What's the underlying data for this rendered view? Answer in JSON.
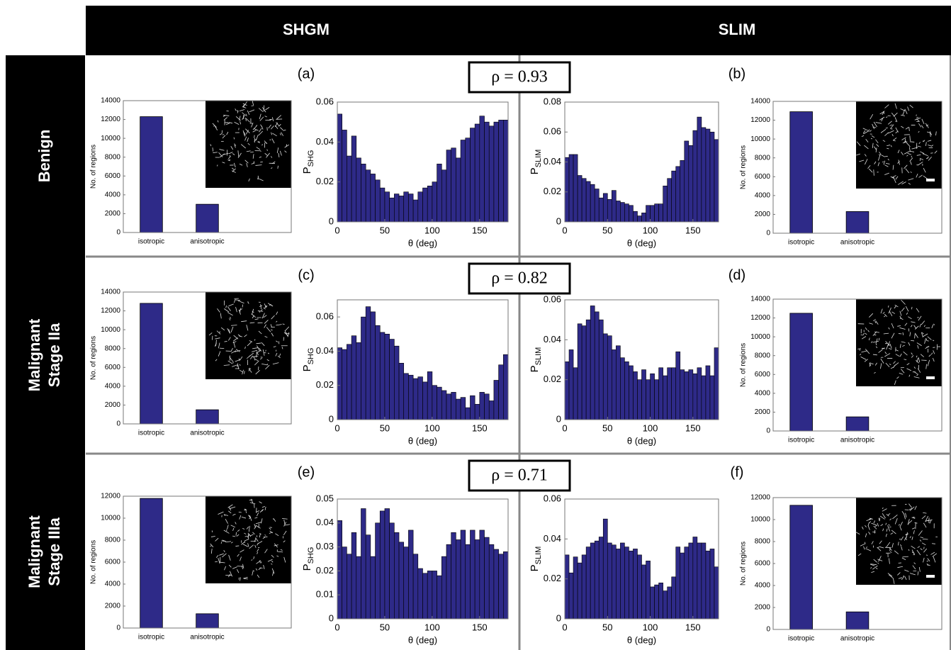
{
  "column_headers": [
    "SHGM",
    "SLIM"
  ],
  "rows": [
    {
      "label": [
        "Benign"
      ],
      "panels": [
        "(a)",
        "(b)"
      ],
      "correlation": "ρ = 0.93"
    },
    {
      "label": [
        "Malignant",
        "Stage IIa"
      ],
      "panels": [
        "(c)",
        "(d)"
      ],
      "correlation": "ρ = 0.82"
    },
    {
      "label": [
        "Malignant",
        "Stage IIIa"
      ],
      "panels": [
        "(e)",
        "(f)"
      ],
      "correlation": "ρ = 0.71"
    }
  ],
  "chart_data": [
    {
      "type": "bar",
      "ylabel": "No. of regions",
      "categories": [
        "isotropic",
        "anisotropic"
      ],
      "values": [
        12300,
        3000
      ],
      "color": "#2e2a88",
      "ylim": [
        0,
        14000
      ],
      "yticks": [
        0,
        2000,
        4000,
        6000,
        8000,
        10000,
        12000,
        14000
      ]
    },
    {
      "type": "histogram",
      "ylabel": "P",
      "ylabel_subscript": "SHG",
      "xlabel": "θ (deg)",
      "color": "#2e2a88",
      "bins": [
        0,
        5,
        10,
        15,
        20,
        25,
        30,
        35,
        40,
        45,
        50,
        55,
        60,
        65,
        70,
        75,
        80,
        85,
        90,
        95,
        100,
        105,
        110,
        115,
        120,
        125,
        130,
        135,
        140,
        145,
        150,
        155,
        160,
        165,
        170,
        175,
        180
      ],
      "values": [
        0.054,
        0.046,
        0.033,
        0.043,
        0.032,
        0.029,
        0.026,
        0.024,
        0.021,
        0.017,
        0.015,
        0.012,
        0.014,
        0.013,
        0.015,
        0.014,
        0.011,
        0.015,
        0.017,
        0.018,
        0.02,
        0.029,
        0.026,
        0.036,
        0.037,
        0.032,
        0.041,
        0.042,
        0.047,
        0.049,
        0.053,
        0.05,
        0.048,
        0.05,
        0.051,
        0.051
      ],
      "xlim": [
        0,
        180
      ],
      "xticks": [
        0,
        50,
        100,
        150
      ],
      "ylim": [
        0,
        0.06
      ],
      "yticks": [
        0,
        0.02,
        0.04,
        0.06
      ]
    },
    {
      "type": "histogram",
      "ylabel": "P",
      "ylabel_subscript": "SLIM",
      "xlabel": "θ (deg)",
      "color": "#2e2a88",
      "bins": [
        0,
        5,
        10,
        15,
        20,
        25,
        30,
        35,
        40,
        45,
        50,
        55,
        60,
        65,
        70,
        75,
        80,
        85,
        90,
        95,
        100,
        105,
        110,
        115,
        120,
        125,
        130,
        135,
        140,
        145,
        150,
        155,
        160,
        165,
        170,
        175,
        180
      ],
      "values": [
        0.043,
        0.045,
        0.045,
        0.031,
        0.029,
        0.027,
        0.025,
        0.022,
        0.016,
        0.019,
        0.015,
        0.021,
        0.014,
        0.013,
        0.012,
        0.011,
        0.007,
        0.004,
        0.006,
        0.011,
        0.011,
        0.012,
        0.012,
        0.024,
        0.029,
        0.034,
        0.037,
        0.041,
        0.054,
        0.051,
        0.061,
        0.07,
        0.063,
        0.062,
        0.06,
        0.055
      ],
      "xlim": [
        0,
        180
      ],
      "xticks": [
        0,
        50,
        100,
        150
      ],
      "ylim": [
        0,
        0.08
      ],
      "yticks": [
        0,
        0.02,
        0.04,
        0.06,
        0.08
      ]
    },
    {
      "type": "bar",
      "ylabel": "No. of regions",
      "categories": [
        "isotropic",
        "anisotropic"
      ],
      "values": [
        12900,
        2300
      ],
      "color": "#2e2a88",
      "ylim": [
        0,
        14000
      ],
      "yticks": [
        0,
        2000,
        4000,
        6000,
        8000,
        10000,
        12000,
        14000
      ]
    },
    {
      "type": "bar",
      "ylabel": "No. of regions",
      "categories": [
        "isotropic",
        "anisotropic"
      ],
      "values": [
        12800,
        1500
      ],
      "color": "#2e2a88",
      "ylim": [
        0,
        14000
      ],
      "yticks": [
        0,
        2000,
        4000,
        6000,
        8000,
        10000,
        12000,
        14000
      ]
    },
    {
      "type": "histogram",
      "ylabel": "P",
      "ylabel_subscript": "SHG",
      "xlabel": "θ (deg)",
      "color": "#2e2a88",
      "bins": [
        0,
        5,
        10,
        15,
        20,
        25,
        30,
        35,
        40,
        45,
        50,
        55,
        60,
        65,
        70,
        75,
        80,
        85,
        90,
        95,
        100,
        105,
        110,
        115,
        120,
        125,
        130,
        135,
        140,
        145,
        150,
        155,
        160,
        165,
        170,
        175,
        180
      ],
      "values": [
        0.042,
        0.041,
        0.044,
        0.049,
        0.045,
        0.06,
        0.066,
        0.063,
        0.055,
        0.051,
        0.05,
        0.047,
        0.043,
        0.033,
        0.027,
        0.026,
        0.024,
        0.025,
        0.022,
        0.028,
        0.02,
        0.019,
        0.017,
        0.015,
        0.016,
        0.012,
        0.013,
        0.007,
        0.014,
        0.009,
        0.016,
        0.015,
        0.011,
        0.023,
        0.032,
        0.038
      ],
      "xlim": [
        0,
        180
      ],
      "xticks": [
        0,
        50,
        100,
        150
      ],
      "ylim": [
        0,
        0.07
      ],
      "yticks": [
        0,
        0.02,
        0.04,
        0.06
      ]
    },
    {
      "type": "histogram",
      "ylabel": "P",
      "ylabel_subscript": "SLIM",
      "xlabel": "θ (deg)",
      "color": "#2e2a88",
      "bins": [
        0,
        5,
        10,
        15,
        20,
        25,
        30,
        35,
        40,
        45,
        50,
        55,
        60,
        65,
        70,
        75,
        80,
        85,
        90,
        95,
        100,
        105,
        110,
        115,
        120,
        125,
        130,
        135,
        140,
        145,
        150,
        155,
        160,
        165,
        170,
        175,
        180
      ],
      "values": [
        0.029,
        0.035,
        0.026,
        0.048,
        0.047,
        0.05,
        0.057,
        0.054,
        0.05,
        0.043,
        0.042,
        0.035,
        0.037,
        0.031,
        0.029,
        0.027,
        0.024,
        0.02,
        0.025,
        0.02,
        0.023,
        0.02,
        0.026,
        0.022,
        0.026,
        0.026,
        0.034,
        0.025,
        0.024,
        0.025,
        0.023,
        0.026,
        0.022,
        0.027,
        0.022,
        0.036
      ],
      "xlim": [
        0,
        180
      ],
      "xticks": [
        0,
        50,
        100,
        150
      ],
      "ylim": [
        0,
        0.06
      ],
      "yticks": [
        0,
        0.02,
        0.04,
        0.06
      ]
    },
    {
      "type": "bar",
      "ylabel": "No. of regions",
      "categories": [
        "isotropic",
        "anisotropic"
      ],
      "values": [
        12500,
        1500
      ],
      "color": "#2e2a88",
      "ylim": [
        0,
        14000
      ],
      "yticks": [
        0,
        2000,
        4000,
        6000,
        8000,
        10000,
        12000,
        14000
      ]
    },
    {
      "type": "bar",
      "ylabel": "No. of regions",
      "categories": [
        "isotropic",
        "anisotropic"
      ],
      "values": [
        11800,
        1300
      ],
      "color": "#2e2a88",
      "ylim": [
        0,
        12000
      ],
      "yticks": [
        0,
        2000,
        4000,
        6000,
        8000,
        10000,
        12000
      ]
    },
    {
      "type": "histogram",
      "ylabel": "P",
      "ylabel_subscript": "SHG",
      "xlabel": "θ (deg)",
      "color": "#2e2a88",
      "bins": [
        0,
        5,
        10,
        15,
        20,
        25,
        30,
        35,
        40,
        45,
        50,
        55,
        60,
        65,
        70,
        75,
        80,
        85,
        90,
        95,
        100,
        105,
        110,
        115,
        120,
        125,
        130,
        135,
        140,
        145,
        150,
        155,
        160,
        165,
        170,
        175,
        180
      ],
      "values": [
        0.041,
        0.03,
        0.027,
        0.036,
        0.026,
        0.046,
        0.035,
        0.026,
        0.04,
        0.045,
        0.046,
        0.04,
        0.036,
        0.032,
        0.03,
        0.037,
        0.027,
        0.021,
        0.019,
        0.02,
        0.02,
        0.018,
        0.026,
        0.031,
        0.036,
        0.033,
        0.037,
        0.031,
        0.037,
        0.033,
        0.037,
        0.034,
        0.031,
        0.029,
        0.027,
        0.028
      ],
      "xlim": [
        0,
        180
      ],
      "xticks": [
        0,
        50,
        100,
        150
      ],
      "ylim": [
        0,
        0.05
      ],
      "yticks": [
        0,
        0.01,
        0.02,
        0.03,
        0.04,
        0.05
      ]
    },
    {
      "type": "histogram",
      "ylabel": "P",
      "ylabel_subscript": "SLIM",
      "xlabel": "θ (deg)",
      "color": "#2e2a88",
      "bins": [
        0,
        5,
        10,
        15,
        20,
        25,
        30,
        35,
        40,
        45,
        50,
        55,
        60,
        65,
        70,
        75,
        80,
        85,
        90,
        95,
        100,
        105,
        110,
        115,
        120,
        125,
        130,
        135,
        140,
        145,
        150,
        155,
        160,
        165,
        170,
        175,
        180
      ],
      "values": [
        0.032,
        0.023,
        0.031,
        0.028,
        0.032,
        0.036,
        0.038,
        0.039,
        0.041,
        0.05,
        0.038,
        0.037,
        0.035,
        0.038,
        0.036,
        0.034,
        0.035,
        0.032,
        0.027,
        0.029,
        0.016,
        0.017,
        0.018,
        0.014,
        0.016,
        0.021,
        0.036,
        0.033,
        0.036,
        0.038,
        0.041,
        0.038,
        0.038,
        0.034,
        0.035,
        0.026
      ],
      "xlim": [
        0,
        180
      ],
      "xticks": [
        0,
        50,
        100,
        150
      ],
      "ylim": [
        0,
        0.06
      ],
      "yticks": [
        0,
        0.02,
        0.04,
        0.06
      ]
    },
    {
      "type": "bar",
      "ylabel": "No. of regions",
      "categories": [
        "isotropic",
        "anisotropic"
      ],
      "values": [
        11300,
        1600
      ],
      "color": "#2e2a88",
      "ylim": [
        0,
        12000
      ],
      "yticks": [
        0,
        2000,
        4000,
        6000,
        8000,
        10000,
        12000
      ]
    }
  ]
}
